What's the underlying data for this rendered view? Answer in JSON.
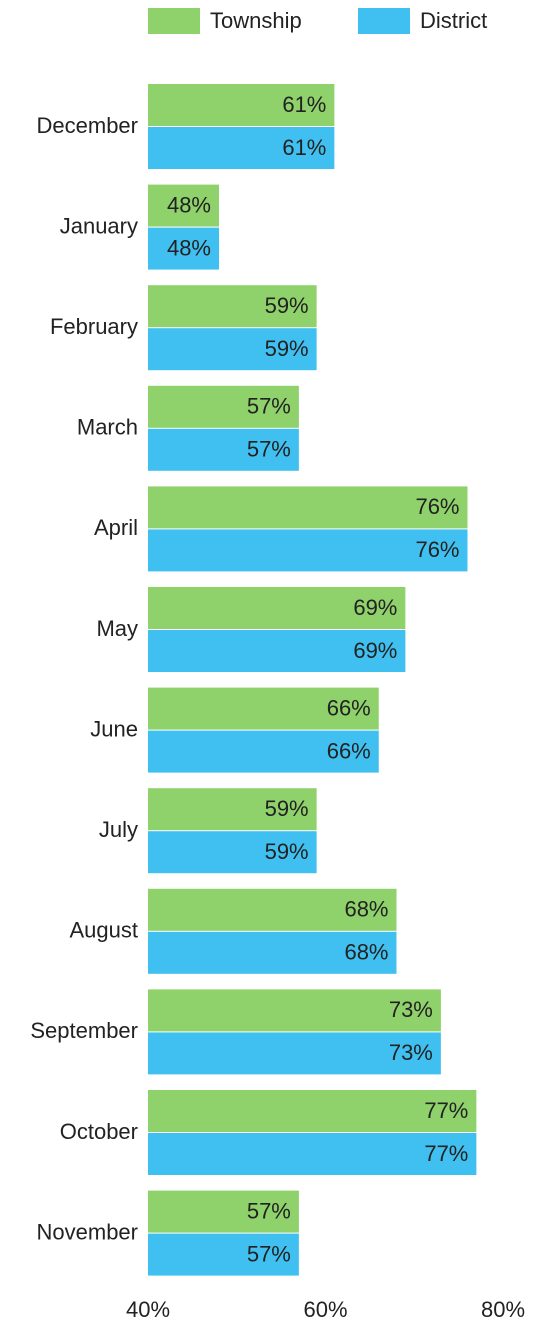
{
  "chart_data": {
    "type": "barh",
    "categories": [
      "December",
      "January",
      "February",
      "March",
      "April",
      "May",
      "June",
      "July",
      "August",
      "September",
      "October",
      "November"
    ],
    "series": [
      {
        "name": "Township",
        "color": "#8fd16a",
        "label_color": "#ffffff",
        "values": [
          61,
          48,
          59,
          57,
          76,
          69,
          66,
          59,
          68,
          73,
          77,
          57
        ],
        "value_labels": [
          "61%",
          "48%",
          "59%",
          "57%",
          "76%",
          "69%",
          "66%",
          "59%",
          "68%",
          "73%",
          "77%",
          "57%"
        ]
      },
      {
        "name": "District",
        "color": "#40c0f0",
        "label_color": "#333333",
        "values": [
          61,
          48,
          59,
          57,
          76,
          69,
          66,
          59,
          68,
          73,
          77,
          57
        ],
        "value_labels": [
          "61%",
          "48%",
          "59%",
          "57%",
          "76%",
          "69%",
          "66%",
          "59%",
          "68%",
          "73%",
          "77%",
          "57%"
        ]
      }
    ],
    "xlim": [
      40,
      80
    ],
    "xticks": [
      {
        "value": 40,
        "label": "40%"
      },
      {
        "value": 60,
        "label": "60%"
      },
      {
        "value": 80,
        "label": "80%"
      }
    ],
    "legend": "top"
  }
}
